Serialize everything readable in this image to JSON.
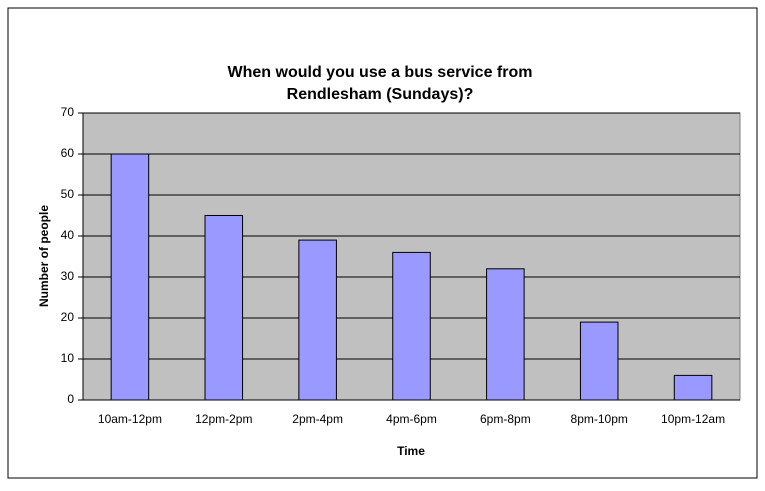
{
  "chart_data": {
    "type": "bar",
    "title": "When would you use a bus service from Rendlesham (Sundays)?",
    "x_label": "Time",
    "y_label": "Number of people",
    "categories": [
      "10am-12pm",
      "12pm-2pm",
      "2pm-4pm",
      "4pm-6pm",
      "6pm-8pm",
      "8pm-10pm",
      "10pm-12am"
    ],
    "values": [
      60,
      45,
      39,
      36,
      32,
      19,
      6
    ],
    "color": "#9999ff",
    "ylim": [
      0,
      70
    ],
    "yticks": [
      0,
      10,
      20,
      30,
      40,
      50,
      60,
      70
    ],
    "grid": true
  }
}
